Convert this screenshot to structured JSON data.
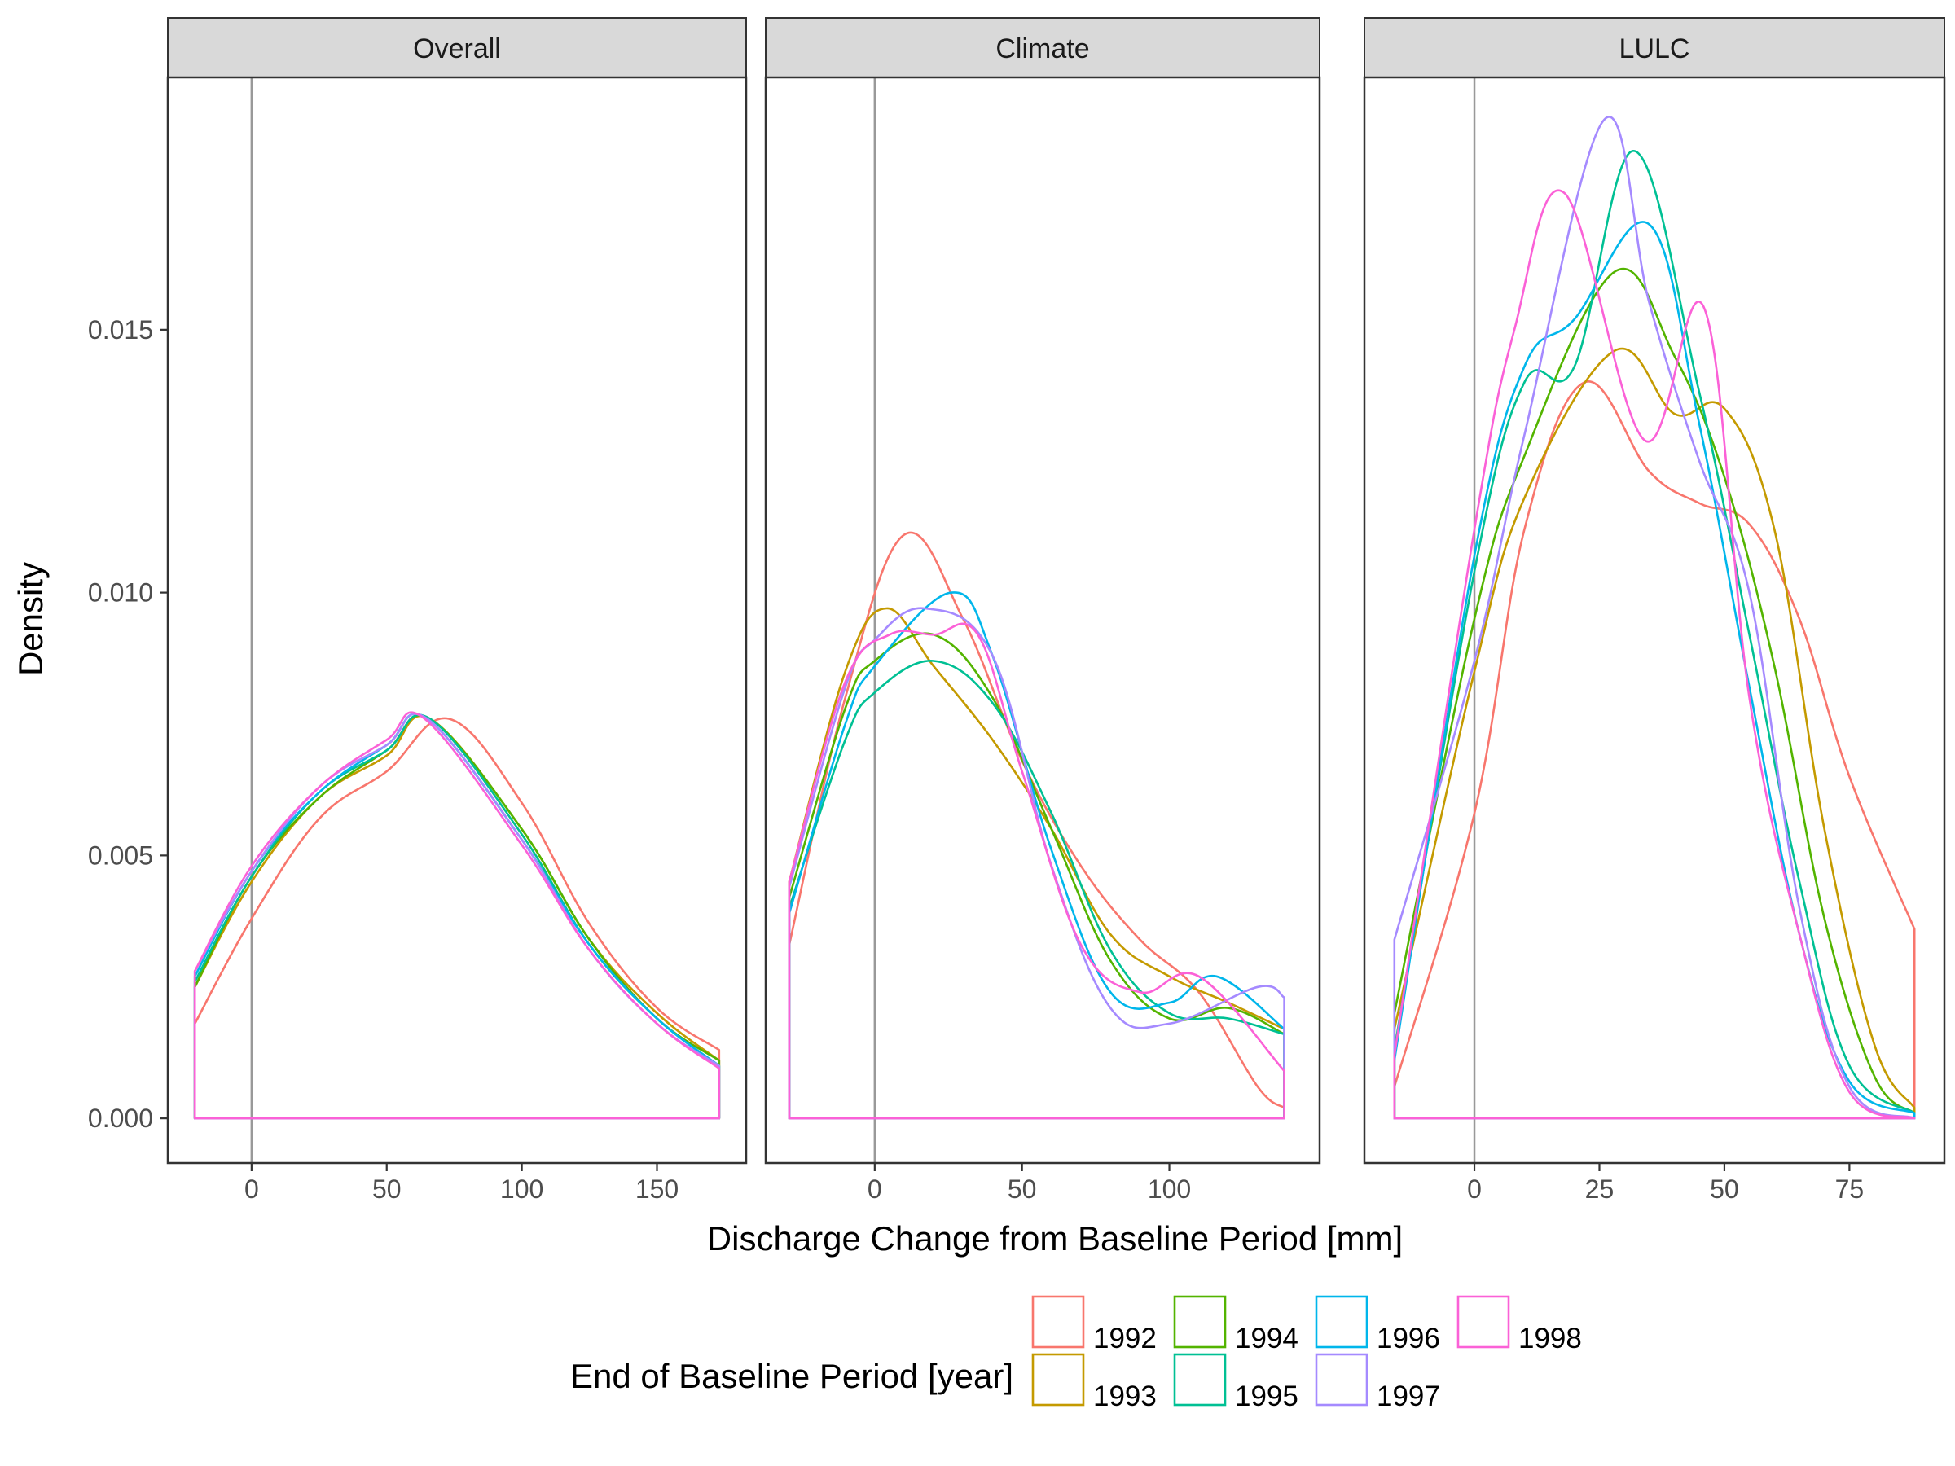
{
  "chart_data": {
    "type": "area",
    "ylabel": "Density",
    "xlabel": "Discharge Change from Baseline Period [mm]",
    "legend": {
      "title": "End of Baseline Period [year]",
      "position": "bottom",
      "entries": [
        {
          "name": "1992",
          "color": "#F8766D"
        },
        {
          "name": "1993",
          "color": "#C49A00"
        },
        {
          "name": "1994",
          "color": "#53B400"
        },
        {
          "name": "1995",
          "color": "#00C094"
        },
        {
          "name": "1996",
          "color": "#00B6EB"
        },
        {
          "name": "1997",
          "color": "#A58AFF"
        },
        {
          "name": "1998",
          "color": "#FB61D7"
        }
      ]
    },
    "ylim": [
      -0.00085,
      0.0198
    ],
    "y_ticks": [
      "0.000",
      "0.005",
      "0.010",
      "0.015"
    ],
    "y_tick_values": [
      0,
      0.005,
      0.01,
      0.015
    ],
    "grid": false,
    "panels": [
      {
        "strip": "Overall",
        "xlim": [
          -31,
          183
        ],
        "x_ticks": [
          "0",
          "50",
          "100",
          "150"
        ],
        "x_tick_values": [
          0,
          50,
          100,
          150
        ],
        "vline": 0,
        "series": [
          {
            "name": "1992",
            "x": [
              -21,
              0,
              25,
              50,
              73,
              100,
              125,
              150,
              173
            ],
            "y": [
              0.0018,
              0.0038,
              0.0057,
              0.0066,
              0.0076,
              0.006,
              0.0037,
              0.0021,
              0.0013
            ]
          },
          {
            "name": "1993",
            "x": [
              -21,
              0,
              25,
              50,
              66,
              100,
              125,
              150,
              173
            ],
            "y": [
              0.0025,
              0.0045,
              0.0061,
              0.0069,
              0.0076,
              0.0055,
              0.0034,
              0.002,
              0.0011
            ]
          },
          {
            "name": "1994",
            "x": [
              -21,
              0,
              25,
              50,
              66,
              100,
              125,
              150,
              173
            ],
            "y": [
              0.0025,
              0.0046,
              0.0061,
              0.007,
              0.0076,
              0.0055,
              0.0034,
              0.0019,
              0.0011
            ]
          },
          {
            "name": "1995",
            "x": [
              -21,
              0,
              25,
              50,
              66,
              100,
              125,
              150,
              173
            ],
            "y": [
              0.0026,
              0.0046,
              0.0062,
              0.007,
              0.0076,
              0.0054,
              0.0033,
              0.0019,
              0.001
            ]
          },
          {
            "name": "1996",
            "x": [
              -21,
              0,
              25,
              50,
              65,
              100,
              125,
              150,
              173
            ],
            "y": [
              0.0027,
              0.0047,
              0.0062,
              0.0071,
              0.0076,
              0.0053,
              0.0033,
              0.0019,
              0.001
            ]
          },
          {
            "name": "1997",
            "x": [
              -21,
              0,
              25,
              50,
              65,
              100,
              125,
              150,
              173
            ],
            "y": [
              0.0028,
              0.0047,
              0.0063,
              0.0071,
              0.0076,
              0.0053,
              0.0032,
              0.0018,
              0.001
            ]
          },
          {
            "name": "1998",
            "x": [
              -21,
              0,
              25,
              50,
              64,
              100,
              125,
              150,
              173
            ],
            "y": [
              0.0028,
              0.0048,
              0.0063,
              0.0072,
              0.0076,
              0.0052,
              0.0032,
              0.0018,
              0.00095
            ]
          }
        ]
      },
      {
        "strip": "Climate",
        "xlim": [
          -37,
          151
        ],
        "x_ticks": [
          "0",
          "50",
          "100"
        ],
        "x_tick_values": [
          0,
          50,
          100
        ],
        "vline": 0,
        "series": [
          {
            "name": "1992",
            "x": [
              -29,
              -10,
              10,
              30,
              50,
              70,
              90,
              110,
              130,
              139
            ],
            "y": [
              0.0033,
              0.008,
              0.0111,
              0.0095,
              0.0068,
              0.0048,
              0.0034,
              0.0024,
              0.0006,
              0.0002
            ]
          },
          {
            "name": "1993",
            "x": [
              -29,
              -10,
              4,
              20,
              40,
              60,
              80,
              100,
              120,
              139
            ],
            "y": [
              0.0045,
              0.0085,
              0.0097,
              0.0086,
              0.0072,
              0.0055,
              0.0035,
              0.0027,
              0.0022,
              0.0017
            ]
          },
          {
            "name": "1994",
            "x": [
              -29,
              -10,
              0,
              20,
              40,
              60,
              80,
              100,
              120,
              139
            ],
            "y": [
              0.0042,
              0.0078,
              0.0087,
              0.0092,
              0.008,
              0.0055,
              0.003,
              0.0019,
              0.0021,
              0.0016
            ]
          },
          {
            "name": "1995",
            "x": [
              -29,
              -10,
              0,
              20,
              40,
              60,
              80,
              100,
              120,
              139
            ],
            "y": [
              0.004,
              0.0072,
              0.0081,
              0.0087,
              0.0079,
              0.0058,
              0.0032,
              0.002,
              0.0019,
              0.0016
            ]
          },
          {
            "name": "1996",
            "x": [
              -29,
              -10,
              0,
              26,
              40,
              60,
              80,
              100,
              116,
              139
            ],
            "y": [
              0.0039,
              0.0075,
              0.0086,
              0.01,
              0.0088,
              0.0051,
              0.0024,
              0.0022,
              0.0027,
              0.0017
            ]
          },
          {
            "name": "1997",
            "x": [
              -29,
              -10,
              0,
              17,
              40,
              60,
              80,
              100,
              130,
              139
            ],
            "y": [
              0.0044,
              0.0082,
              0.0091,
              0.0097,
              0.0088,
              0.0048,
              0.0021,
              0.0018,
              0.0025,
              0.0023
            ]
          },
          {
            "name": "1998",
            "x": [
              -29,
              -10,
              5,
              20,
              35,
              50,
              70,
              90,
              110,
              139
            ],
            "y": [
              0.0045,
              0.0083,
              0.0092,
              0.0092,
              0.0092,
              0.0066,
              0.0033,
              0.0024,
              0.0027,
              0.0009
            ]
          }
        ]
      },
      {
        "strip": "LULC",
        "xlim": [
          -22,
          94
        ],
        "x_ticks": [
          "0",
          "25",
          "50",
          "75"
        ],
        "x_tick_values": [
          0,
          25,
          50,
          75
        ],
        "vline": 0,
        "series": [
          {
            "name": "1992",
            "x": [
              -16,
              0,
              10,
              22,
              35,
              45,
              55,
              65,
              75,
              88
            ],
            "y": [
              0.0006,
              0.0058,
              0.0112,
              0.014,
              0.0123,
              0.0117,
              0.0113,
              0.0095,
              0.0065,
              0.0036
            ]
          },
          {
            "name": "1993",
            "x": [
              -16,
              0,
              10,
              28,
              40,
              50,
              60,
              70,
              80,
              88
            ],
            "y": [
              0.0017,
              0.0085,
              0.0118,
              0.0146,
              0.0134,
              0.0135,
              0.0112,
              0.0055,
              0.0014,
              0.0002
            ]
          },
          {
            "name": "1994",
            "x": [
              -16,
              0,
              10,
              28,
              40,
              50,
              60,
              70,
              80,
              88
            ],
            "y": [
              0.002,
              0.0095,
              0.0126,
              0.0161,
              0.0145,
              0.0122,
              0.0086,
              0.0038,
              0.0008,
              0.0001
            ]
          },
          {
            "name": "1995",
            "x": [
              -16,
              0,
              10,
              20,
              32,
              45,
              55,
              65,
              75,
              88
            ],
            "y": [
              0.0013,
              0.0104,
              0.014,
              0.0143,
              0.0184,
              0.0138,
              0.0092,
              0.0045,
              0.001,
              0.0001
            ]
          },
          {
            "name": "1996",
            "x": [
              -16,
              0,
              10,
              20,
              35,
              45,
              55,
              65,
              75,
              88
            ],
            "y": [
              0.0011,
              0.0107,
              0.0143,
              0.0152,
              0.017,
              0.0132,
              0.0082,
              0.0035,
              0.0007,
              0.0001
            ]
          },
          {
            "name": "1997",
            "x": [
              -16,
              0,
              10,
              26,
              35,
              45,
              55,
              65,
              75,
              88
            ],
            "y": [
              0.0034,
              0.0087,
              0.013,
              0.019,
              0.0155,
              0.0125,
              0.01,
              0.004,
              0.0006,
              0.0
            ]
          },
          {
            "name": "1998",
            "x": [
              -16,
              0,
              8,
              18,
              34,
              46,
              55,
              65,
              75,
              88
            ],
            "y": [
              0.0012,
              0.0112,
              0.015,
              0.0176,
              0.0129,
              0.0154,
              0.008,
              0.0035,
              0.0005,
              0.0
            ]
          }
        ]
      }
    ]
  }
}
